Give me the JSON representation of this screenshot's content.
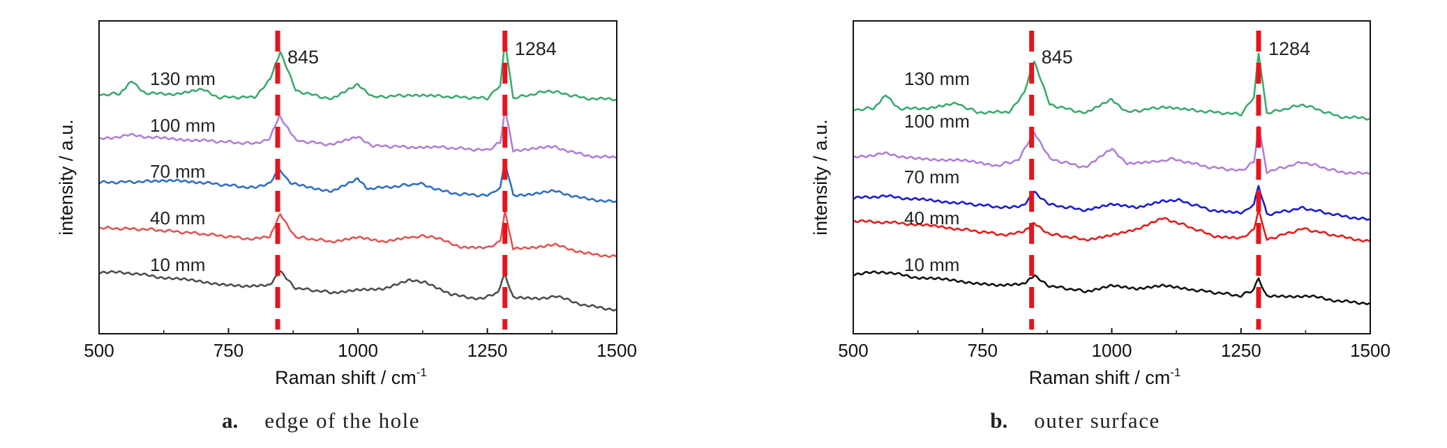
{
  "chart_data": [
    {
      "type": "line",
      "title": "",
      "xlabel": "Raman shift / cm",
      "xlabel_sup": "-1",
      "ylabel": "intensity / a.u.",
      "xlim": [
        500,
        1500
      ],
      "xticks": [
        500,
        750,
        1000,
        1250,
        1500
      ],
      "grid": false,
      "caption_letter": "a.",
      "caption_text": "edge of the hole",
      "markers": [
        {
          "x": 845,
          "label": "845"
        },
        {
          "x": 1284,
          "label": "1284"
        }
      ],
      "series": [
        {
          "label": "10 mm",
          "color": "#4d4d4d",
          "x": [
            500,
            560,
            620,
            700,
            780,
            830,
            850,
            880,
            950,
            1000,
            1050,
            1100,
            1130,
            1180,
            1240,
            1270,
            1284,
            1300,
            1350,
            1380,
            1440,
            1500
          ],
          "y": [
            0.1,
            0.08,
            0.0,
            -0.08,
            -0.18,
            -0.14,
            0.1,
            -0.2,
            -0.28,
            -0.22,
            -0.22,
            -0.06,
            -0.08,
            -0.32,
            -0.4,
            -0.28,
            0.06,
            -0.38,
            -0.4,
            -0.34,
            -0.52,
            -0.6
          ]
        },
        {
          "label": "40 mm",
          "color": "#e05555",
          "x": [
            500,
            600,
            700,
            800,
            830,
            850,
            880,
            950,
            1000,
            1050,
            1100,
            1140,
            1200,
            1250,
            1275,
            1284,
            1300,
            1380,
            1440,
            1500
          ],
          "y": [
            0.05,
            0.02,
            -0.06,
            -0.16,
            -0.1,
            0.3,
            -0.12,
            -0.2,
            -0.12,
            -0.22,
            -0.12,
            -0.1,
            -0.3,
            -0.32,
            -0.2,
            0.35,
            -0.34,
            -0.26,
            -0.42,
            -0.48
          ]
        },
        {
          "label": "70 mm",
          "color": "#2f6fc4",
          "x": [
            500,
            600,
            650,
            700,
            800,
            830,
            848,
            870,
            950,
            1000,
            1020,
            1080,
            1120,
            1180,
            1250,
            1275,
            1284,
            1300,
            1380,
            1440,
            1500
          ],
          "y": [
            0.0,
            0.02,
            0.05,
            0.0,
            -0.1,
            0.0,
            0.25,
            -0.02,
            -0.16,
            0.06,
            -0.12,
            -0.06,
            -0.02,
            -0.2,
            -0.24,
            -0.1,
            0.4,
            -0.24,
            -0.16,
            -0.3,
            -0.36
          ]
        },
        {
          "label": "100 mm",
          "color": "#b07fd6",
          "x": [
            500,
            560,
            620,
            700,
            800,
            830,
            848,
            880,
            950,
            1000,
            1030,
            1100,
            1150,
            1250,
            1275,
            1284,
            1300,
            1380,
            1440,
            1500
          ],
          "y": [
            0.0,
            0.08,
            0.02,
            -0.02,
            -0.08,
            0.02,
            0.42,
            -0.02,
            -0.1,
            0.04,
            -0.12,
            -0.14,
            -0.14,
            -0.2,
            -0.06,
            0.55,
            -0.2,
            -0.14,
            -0.3,
            -0.34
          ]
        },
        {
          "label": "130 mm",
          "color": "#3aaa6e",
          "x": [
            500,
            540,
            563,
            590,
            650,
            700,
            730,
            800,
            830,
            850,
            880,
            950,
            1000,
            1030,
            1100,
            1150,
            1250,
            1275,
            1284,
            1300,
            1370,
            1440,
            1500
          ],
          "y": [
            0.02,
            0.05,
            0.28,
            0.05,
            0.04,
            0.12,
            -0.02,
            -0.02,
            0.3,
            0.82,
            0.1,
            -0.06,
            0.22,
            -0.02,
            0.02,
            0.0,
            -0.04,
            0.2,
            1.02,
            -0.04,
            0.1,
            -0.04,
            -0.06
          ]
        }
      ]
    },
    {
      "type": "line",
      "title": "",
      "xlabel": "Raman shift / cm",
      "xlabel_sup": "-1",
      "ylabel": "intensity / a.u.",
      "xlim": [
        500,
        1500
      ],
      "xticks": [
        500,
        750,
        1000,
        1250,
        1500
      ],
      "grid": false,
      "caption_letter": "b.",
      "caption_text": "outer surface",
      "markers": [
        {
          "x": 845,
          "label": "845"
        },
        {
          "x": 1284,
          "label": "1284"
        }
      ],
      "series": [
        {
          "label": "10 mm",
          "color": "#111111",
          "x": [
            500,
            560,
            620,
            700,
            780,
            830,
            850,
            880,
            950,
            1000,
            1050,
            1100,
            1150,
            1250,
            1275,
            1284,
            1300,
            1380,
            1440,
            1500
          ],
          "y": [
            0.06,
            0.1,
            0.0,
            -0.06,
            -0.16,
            -0.12,
            0.02,
            -0.16,
            -0.26,
            -0.14,
            -0.22,
            -0.16,
            -0.22,
            -0.34,
            -0.22,
            -0.02,
            -0.36,
            -0.34,
            -0.44,
            -0.48
          ]
        },
        {
          "label": "40 mm",
          "color": "#e51c1c",
          "x": [
            500,
            560,
            620,
            700,
            800,
            830,
            850,
            880,
            950,
            1000,
            1050,
            1100,
            1130,
            1200,
            1250,
            1275,
            1284,
            1300,
            1370,
            1440,
            1500
          ],
          "y": [
            0.06,
            0.04,
            0.0,
            -0.08,
            -0.2,
            -0.12,
            0.02,
            -0.18,
            -0.28,
            -0.2,
            -0.1,
            0.12,
            0.02,
            -0.22,
            -0.26,
            -0.1,
            0.26,
            -0.28,
            -0.08,
            -0.22,
            -0.32
          ]
        },
        {
          "label": "70 mm",
          "color": "#1a1ad6",
          "x": [
            500,
            560,
            620,
            700,
            800,
            830,
            850,
            880,
            950,
            1000,
            1050,
            1100,
            1130,
            1200,
            1250,
            1275,
            1284,
            1300,
            1370,
            1440,
            1500
          ],
          "y": [
            0.02,
            0.06,
            0.0,
            -0.06,
            -0.16,
            -0.1,
            0.14,
            -0.1,
            -0.2,
            -0.1,
            -0.16,
            -0.02,
            -0.02,
            -0.22,
            -0.26,
            -0.1,
            0.26,
            -0.28,
            -0.16,
            -0.3,
            -0.38
          ]
        },
        {
          "label": "100 mm",
          "color": "#b07fd6",
          "x": [
            500,
            560,
            620,
            700,
            780,
            820,
            850,
            880,
            950,
            1000,
            1030,
            1080,
            1120,
            1180,
            1250,
            1275,
            1284,
            1300,
            1370,
            1440,
            1500
          ],
          "y": [
            0.02,
            0.1,
            0.0,
            -0.02,
            -0.12,
            -0.02,
            0.5,
            0.0,
            -0.16,
            0.18,
            -0.08,
            -0.06,
            0.0,
            -0.14,
            -0.22,
            -0.06,
            0.6,
            -0.24,
            -0.06,
            -0.24,
            -0.28
          ]
        },
        {
          "label": "130 mm",
          "color": "#3aaa6e",
          "x": [
            500,
            540,
            563,
            590,
            650,
            700,
            740,
            800,
            830,
            850,
            880,
            950,
            1000,
            1030,
            1100,
            1150,
            1250,
            1275,
            1284,
            1300,
            1370,
            1440,
            1500
          ],
          "y": [
            0.0,
            0.04,
            0.28,
            0.02,
            0.04,
            0.12,
            -0.04,
            -0.04,
            0.3,
            0.9,
            0.1,
            -0.06,
            0.2,
            -0.04,
            0.06,
            0.0,
            -0.08,
            0.24,
            1.06,
            -0.06,
            0.1,
            -0.12,
            -0.16
          ]
        }
      ]
    }
  ]
}
